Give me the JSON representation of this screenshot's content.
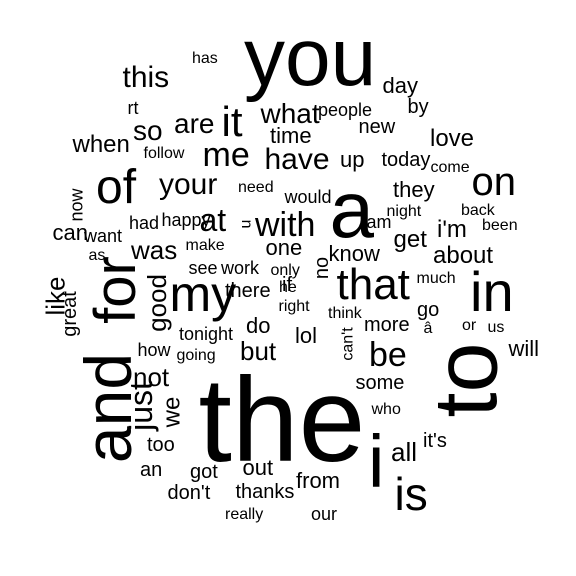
{
  "word_cloud": {
    "text_color": "#000000",
    "background_color": "#ffffff",
    "words": [
      {
        "text": "the"
      },
      {
        "text": "to"
      },
      {
        "text": "you"
      },
      {
        "text": "and"
      },
      {
        "text": "a"
      },
      {
        "text": "i"
      },
      {
        "text": "for"
      },
      {
        "text": "in"
      },
      {
        "text": "of"
      },
      {
        "text": "my"
      },
      {
        "text": "is"
      },
      {
        "text": "that"
      },
      {
        "text": "it"
      },
      {
        "text": "on"
      },
      {
        "text": "me"
      },
      {
        "text": "this"
      },
      {
        "text": "be"
      },
      {
        "text": "your"
      },
      {
        "text": "have"
      },
      {
        "text": "with"
      },
      {
        "text": "are"
      },
      {
        "text": "at"
      },
      {
        "text": "so"
      },
      {
        "text": "what"
      },
      {
        "text": "just"
      },
      {
        "text": "like"
      },
      {
        "text": "not"
      },
      {
        "text": "but"
      },
      {
        "text": "good"
      },
      {
        "text": "all"
      },
      {
        "text": "was"
      },
      {
        "text": "we"
      },
      {
        "text": "love"
      },
      {
        "text": "day"
      },
      {
        "text": "about"
      },
      {
        "text": "i'm"
      },
      {
        "text": "when"
      },
      {
        "text": "get"
      },
      {
        "text": "up"
      },
      {
        "text": "will"
      },
      {
        "text": "know"
      },
      {
        "text": "do"
      },
      {
        "text": "can"
      },
      {
        "text": "out"
      },
      {
        "text": "they"
      },
      {
        "text": "time"
      },
      {
        "text": "thanks"
      },
      {
        "text": "one"
      },
      {
        "text": "from"
      },
      {
        "text": "great"
      },
      {
        "text": "now"
      },
      {
        "text": "by"
      },
      {
        "text": "new"
      },
      {
        "text": "today"
      },
      {
        "text": "it's"
      },
      {
        "text": "lol"
      },
      {
        "text": "more"
      },
      {
        "text": "go"
      },
      {
        "text": "some"
      },
      {
        "text": "got"
      },
      {
        "text": "don't"
      },
      {
        "text": "there"
      },
      {
        "text": "if"
      },
      {
        "text": "an"
      },
      {
        "text": "no"
      },
      {
        "text": "how"
      },
      {
        "text": "too"
      },
      {
        "text": "rt"
      },
      {
        "text": "would"
      },
      {
        "text": "our"
      },
      {
        "text": "people"
      },
      {
        "text": "has"
      },
      {
        "text": "work"
      },
      {
        "text": "see"
      },
      {
        "text": "who"
      },
      {
        "text": "think"
      },
      {
        "text": "really"
      },
      {
        "text": "tonight"
      },
      {
        "text": "going"
      },
      {
        "text": "need"
      },
      {
        "text": "make"
      },
      {
        "text": "back"
      },
      {
        "text": "much"
      },
      {
        "text": "right"
      },
      {
        "text": "follow"
      },
      {
        "text": "come"
      },
      {
        "text": "had"
      },
      {
        "text": "happy"
      },
      {
        "text": "u"
      },
      {
        "text": "want"
      },
      {
        "text": "as"
      },
      {
        "text": "night"
      },
      {
        "text": "only"
      },
      {
        "text": "been"
      },
      {
        "text": "am"
      },
      {
        "text": "â"
      },
      {
        "text": "can't"
      },
      {
        "text": "or"
      },
      {
        "text": "us"
      },
      {
        "text": "he"
      }
    ]
  }
}
